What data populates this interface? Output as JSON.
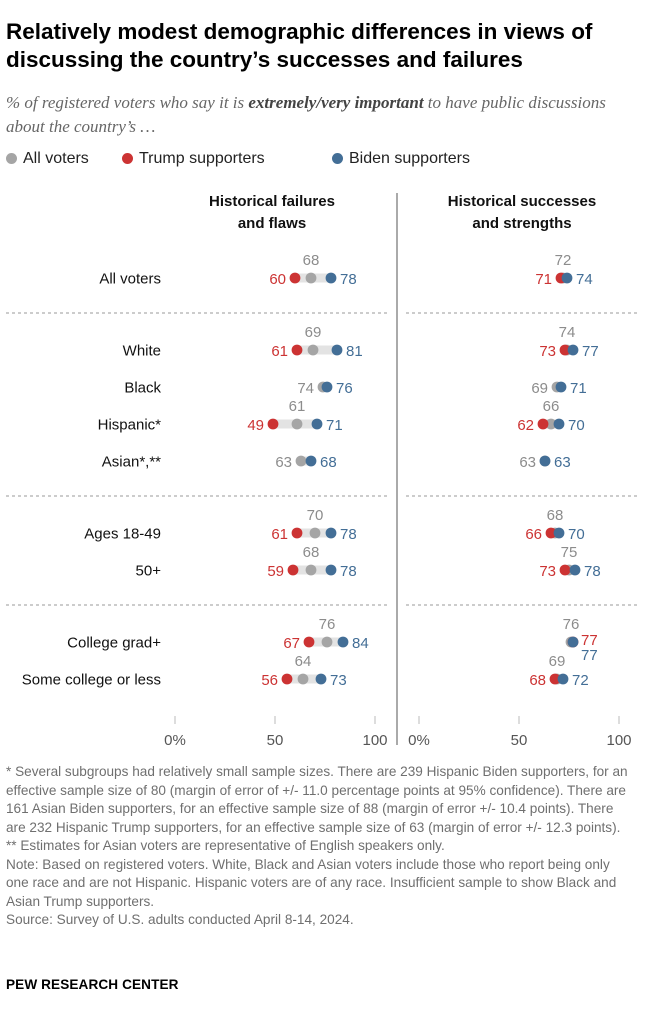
{
  "title": "Relatively modest demographic differences in views of discussing the country’s successes and failures",
  "subtitle": {
    "prefix": "% of registered voters who say it is ",
    "emphasis": "extremely/very important",
    "suffix": " to have public discussions about the country’s …"
  },
  "legend": [
    {
      "label": "All voters",
      "color": "#a5a5a5"
    },
    {
      "label": "Trump supporters",
      "color": "#cc3333"
    },
    {
      "label": "Biden supporters",
      "color": "#436e96"
    }
  ],
  "chart_data": {
    "type": "dot",
    "panels": [
      {
        "title": "Historical failures and flaws",
        "title_lines": [
          "Historical failures",
          "and flaws"
        ],
        "ticks": [
          "0%",
          "50",
          "100"
        ]
      },
      {
        "title": "Historical successes and strengths",
        "title_lines": [
          "Historical successes",
          "and strengths"
        ],
        "ticks": [
          "0%",
          "50",
          "100"
        ]
      }
    ],
    "xlim": [
      0,
      100
    ],
    "series": [
      "All voters",
      "Trump supporters",
      "Biden supporters"
    ],
    "groups": [
      {
        "categories": [
          {
            "label": "All voters",
            "values": [
              {
                "all": 68,
                "trump": 60,
                "biden": 78
              },
              {
                "all": 72,
                "trump": 71,
                "biden": 74
              }
            ]
          }
        ]
      },
      {
        "categories": [
          {
            "label": "White",
            "values": [
              {
                "all": 69,
                "trump": 61,
                "biden": 81
              },
              {
                "all": 74,
                "trump": 73,
                "biden": 77
              }
            ]
          },
          {
            "label": "Black",
            "values": [
              {
                "all": 74,
                "trump": null,
                "biden": 76
              },
              {
                "all": 69,
                "trump": null,
                "biden": 71
              }
            ]
          },
          {
            "label": "Hispanic*",
            "values": [
              {
                "all": 61,
                "trump": 49,
                "biden": 71
              },
              {
                "all": 66,
                "trump": 62,
                "biden": 70
              }
            ]
          },
          {
            "label": "Asian*,**",
            "values": [
              {
                "all": 63,
                "trump": null,
                "biden": 68
              },
              {
                "all": 63,
                "trump": null,
                "biden": 63
              }
            ]
          }
        ]
      },
      {
        "categories": [
          {
            "label": "Ages 18-49",
            "values": [
              {
                "all": 70,
                "trump": 61,
                "biden": 78
              },
              {
                "all": 68,
                "trump": 66,
                "biden": 70
              }
            ]
          },
          {
            "label": "50+",
            "values": [
              {
                "all": 68,
                "trump": 59,
                "biden": 78
              },
              {
                "all": 75,
                "trump": 73,
                "biden": 78
              }
            ]
          }
        ]
      },
      {
        "categories": [
          {
            "label": "College grad+",
            "values": [
              {
                "all": 76,
                "trump": 67,
                "biden": 84
              },
              {
                "all": 76,
                "trump": 77,
                "biden": 77
              }
            ]
          },
          {
            "label": "Some college or less",
            "values": [
              {
                "all": 64,
                "trump": 56,
                "biden": 73
              },
              {
                "all": 69,
                "trump": 68,
                "biden": 72
              }
            ]
          }
        ]
      }
    ]
  },
  "notes": [
    "* Several subgroups had relatively small sample sizes. There are 239 Hispanic Biden supporters, for an effective sample size of 80 (margin of error of +/- 11.0 percentage points at 95% confidence). There are 161 Asian Biden supporters, for an effective sample size of 88 (margin of error +/- 10.4 points). There are 232 Hispanic Trump supporters, for an effective sample size of 63 (margin of error +/- 12.3 points).",
    "** Estimates for Asian voters are representative of English speakers only.",
    "Note: Based on registered voters. White, Black and Asian voters include those who report being only one race and are not Hispanic. Hispanic voters are of any race. Insufficient sample to show Black and Asian Trump supporters.",
    "Source: Survey of U.S. adults conducted April 8-14, 2024."
  ],
  "source_org": "PEW RESEARCH CENTER",
  "colors": {
    "all": "#a5a5a5",
    "trump": "#cc3333",
    "biden": "#436e96",
    "all_text": "#8c8c8c",
    "connector": "#e3e3e3",
    "rule": "#9a9a9a",
    "axis": "#555555",
    "tick": "#bbbbbb"
  }
}
